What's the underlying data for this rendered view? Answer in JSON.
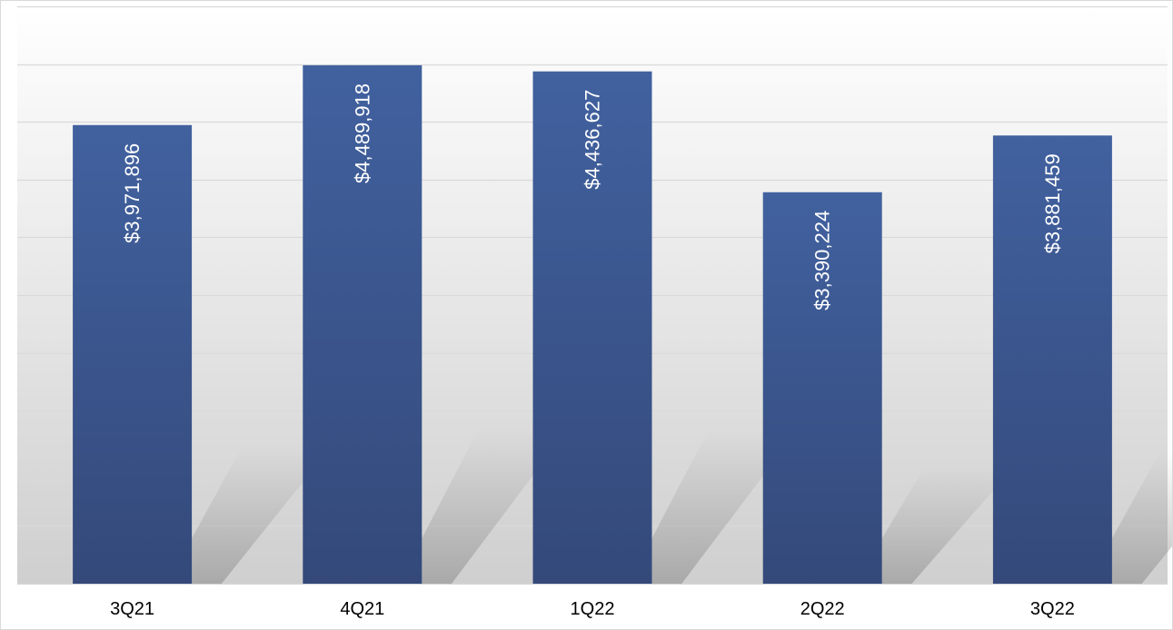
{
  "chart_data": {
    "type": "bar",
    "title": "",
    "xlabel": "",
    "ylabel": "",
    "categories": [
      "3Q21",
      "4Q21",
      "1Q22",
      "2Q22",
      "3Q22"
    ],
    "values": [
      3971896,
      4489918,
      4436627,
      3390224,
      3881459
    ],
    "data_labels": [
      "$3,971,896",
      "$4,489,918",
      "$4,436,627",
      "$3,390,224",
      "$3,881,459"
    ],
    "ylim": [
      0,
      5000000
    ],
    "y_gridline_step": 500000,
    "grid": true,
    "legend": "none",
    "bar_color_top": "#41619f",
    "bar_color_bottom": "#34497a",
    "label_color": "#ffffff",
    "background_top": "#ffffff",
    "background_bottom": "#cfcfcf"
  }
}
